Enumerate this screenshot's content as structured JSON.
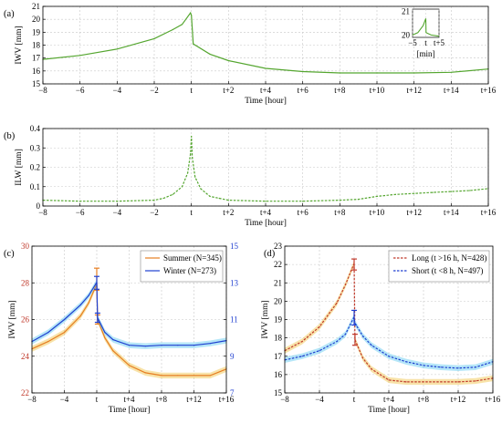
{
  "chart_data": [
    {
      "panel_label": "(a)",
      "type": "line",
      "xlabel": "Time [hour]",
      "ylabel": "IWV [mm]",
      "xlim": [
        -8,
        16
      ],
      "ylim": [
        15,
        21
      ],
      "x_ticks": [
        -8,
        -6,
        -4,
        -2,
        0,
        2,
        4,
        6,
        8,
        10,
        12,
        14,
        16
      ],
      "x_tick_labels": [
        "−8",
        "−6",
        "−4",
        "−2",
        "t",
        "t+2",
        "t+4",
        "t+6",
        "t+8",
        "t+10",
        "t+12",
        "t+14",
        "t+16"
      ],
      "y_ticks": [
        15,
        16,
        17,
        18,
        19,
        20,
        21
      ],
      "y_tick_labels": [
        "15",
        "16",
        "17",
        "18",
        "19",
        "20",
        "21"
      ],
      "grid": true,
      "series": [
        {
          "color": "#55a630",
          "style": "solid",
          "x": [
            -8,
            -6,
            -4,
            -2,
            -1,
            -0.5,
            -0.05,
            0,
            0.1,
            1,
            2,
            4,
            6,
            8,
            10,
            12,
            14,
            16
          ],
          "y": [
            16.9,
            17.2,
            17.7,
            18.5,
            19.2,
            19.6,
            20.5,
            20.3,
            18.1,
            17.3,
            16.8,
            16.2,
            15.95,
            15.85,
            15.85,
            15.85,
            15.9,
            16.15
          ]
        }
      ],
      "inset": {
        "xlabel": "[min]",
        "xlim": [
          -5,
          5
        ],
        "ylim": [
          19.9,
          21.1
        ],
        "x_ticks": [
          -5,
          0,
          5
        ],
        "x_tick_labels": [
          "−5",
          "t",
          "t+5"
        ],
        "y_ticks": [
          20,
          21
        ],
        "y_tick_labels": [
          "20",
          "21"
        ],
        "series": [
          {
            "color": "#55a630",
            "style": "solid",
            "x": [
              -5,
              -3,
              -1,
              0,
              0.1,
              2,
              5
            ],
            "y": [
              20.0,
              20.1,
              20.4,
              20.7,
              20.1,
              20.0,
              19.95
            ]
          }
        ]
      }
    },
    {
      "panel_label": "(b)",
      "type": "line",
      "xlabel": "Time [hour]",
      "ylabel": "ILW [mm]",
      "xlim": [
        -8,
        16
      ],
      "ylim": [
        0,
        0.4
      ],
      "x_ticks": [
        -8,
        -6,
        -4,
        -2,
        0,
        2,
        4,
        6,
        8,
        10,
        12,
        14,
        16
      ],
      "x_tick_labels": [
        "−8",
        "−6",
        "−4",
        "−2",
        "t",
        "t+2",
        "t+4",
        "t+6",
        "t+8",
        "t+10",
        "t+12",
        "t+14",
        "t+16"
      ],
      "y_ticks": [
        0,
        0.1,
        0.2,
        0.3,
        0.4
      ],
      "y_tick_labels": [
        "0",
        "0.1",
        "0.2",
        "0.3",
        "0.4"
      ],
      "grid": true,
      "series": [
        {
          "color": "#55a630",
          "style": "dashed",
          "x": [
            -8,
            -6,
            -4,
            -2,
            -1.5,
            -1,
            -0.5,
            -0.2,
            -0.05,
            0,
            0.05,
            0.2,
            0.5,
            1,
            1.5,
            2,
            4,
            6,
            8,
            9,
            10,
            11,
            12,
            13,
            14,
            15,
            16
          ],
          "y": [
            0.03,
            0.025,
            0.025,
            0.03,
            0.04,
            0.06,
            0.1,
            0.17,
            0.27,
            0.36,
            0.25,
            0.15,
            0.09,
            0.05,
            0.04,
            0.03,
            0.025,
            0.025,
            0.03,
            0.035,
            0.05,
            0.06,
            0.065,
            0.07,
            0.075,
            0.08,
            0.09
          ]
        }
      ]
    },
    {
      "panel_label": "(c)",
      "type": "line",
      "xlabel": "Time [hour]",
      "ylabel": "IWV [mm]",
      "xlim": [
        -8,
        16
      ],
      "ylim": [
        22,
        30
      ],
      "x_ticks": [
        -8,
        -4,
        0,
        4,
        8,
        12,
        16
      ],
      "x_tick_labels": [
        "−8",
        "−4",
        "t",
        "t+4",
        "t+8",
        "t+12",
        "t+16"
      ],
      "y_ticks": [
        22,
        24,
        26,
        28,
        30
      ],
      "y_tick_labels": [
        "22",
        "24",
        "26",
        "28",
        "30"
      ],
      "y_color": "#c0392b",
      "y2lim": [
        7,
        15
      ],
      "y2_ticks": [
        7,
        9,
        11,
        13,
        15
      ],
      "y2_tick_labels": [
        "7",
        "9",
        "11",
        "13",
        "15"
      ],
      "y2_color": "#1f3fd0",
      "grid": true,
      "legend": "top-right",
      "series": [
        {
          "name": "Summer (N=345)",
          "color": "#e67e22",
          "band": "#f0c040",
          "axis": "left",
          "x": [
            -8,
            -6,
            -4,
            -2,
            -1,
            -0.05,
            0,
            0.1,
            1,
            2,
            4,
            6,
            8,
            10,
            12,
            14,
            16
          ],
          "y": [
            24.4,
            24.8,
            25.3,
            26.2,
            26.9,
            27.9,
            27.9,
            26.0,
            25.0,
            24.3,
            23.5,
            23.1,
            22.95,
            22.95,
            22.95,
            22.95,
            23.3
          ],
          "errorbars": [
            {
              "x": 0,
              "y": 28.2,
              "err": 0.6
            },
            {
              "x": 0.1,
              "y": 26.0,
              "err": 0.25
            }
          ]
        },
        {
          "name": "Winter (N=273)",
          "color": "#1f3fd0",
          "band": "#5bc8f0",
          "axis": "right",
          "x": [
            -8,
            -6,
            -4,
            -2,
            -1,
            -0.05,
            0,
            0.1,
            1,
            2,
            4,
            6,
            8,
            10,
            12,
            14,
            16
          ],
          "y": [
            9.8,
            10.3,
            11.0,
            11.8,
            12.3,
            13.0,
            13.0,
            11.1,
            10.3,
            9.9,
            9.6,
            9.55,
            9.6,
            9.6,
            9.6,
            9.7,
            9.85
          ],
          "errorbars": [
            {
              "x": 0,
              "y": 13.0,
              "err": 0.35
            },
            {
              "x": 0.1,
              "y": 11.1,
              "err": 0.25
            }
          ]
        }
      ]
    },
    {
      "panel_label": "(d)",
      "type": "line",
      "xlabel": "Time [hour]",
      "ylabel": "IWV [mm]",
      "xlim": [
        -8,
        16
      ],
      "ylim": [
        15,
        23
      ],
      "x_ticks": [
        -8,
        -4,
        0,
        4,
        8,
        12,
        16
      ],
      "x_tick_labels": [
        "−8",
        "−4",
        "t",
        "t+4",
        "t+8",
        "t+12",
        "t+16"
      ],
      "y_ticks": [
        15,
        16,
        17,
        18,
        19,
        20,
        21,
        22,
        23
      ],
      "y_tick_labels": [
        "15",
        "16",
        "17",
        "18",
        "19",
        "20",
        "21",
        "22",
        "23"
      ],
      "grid": true,
      "legend": "top-right",
      "series": [
        {
          "name": "Long (t >16 h, N=428)",
          "color": "#c0392b",
          "band": "#f0c040",
          "style": "dashed",
          "x": [
            -8,
            -6,
            -4,
            -2,
            -1,
            -0.05,
            0,
            0.1,
            1,
            2,
            4,
            6,
            8,
            10,
            12,
            14,
            16
          ],
          "y": [
            17.3,
            17.8,
            18.6,
            19.9,
            20.9,
            22.0,
            22.0,
            17.9,
            16.9,
            16.3,
            15.7,
            15.6,
            15.6,
            15.6,
            15.6,
            15.65,
            15.8
          ],
          "errorbars": [
            {
              "x": 0,
              "y": 22.0,
              "err": 0.3
            },
            {
              "x": 0.1,
              "y": 17.9,
              "err": 0.3
            }
          ]
        },
        {
          "name": "Short (t <8 h, N=497)",
          "color": "#1f3fd0",
          "band": "#5bc8f0",
          "style": "dashed",
          "x": [
            -8,
            -6,
            -4,
            -2,
            -1,
            -0.05,
            0,
            0.1,
            1,
            2,
            4,
            6,
            8,
            10,
            12,
            14,
            16
          ],
          "y": [
            16.8,
            17.0,
            17.3,
            17.8,
            18.2,
            19.1,
            19.1,
            18.8,
            18.1,
            17.6,
            17.0,
            16.7,
            16.5,
            16.4,
            16.35,
            16.4,
            16.7
          ],
          "errorbars": [
            {
              "x": 0,
              "y": 19.1,
              "err": 0.4
            }
          ]
        }
      ]
    }
  ]
}
